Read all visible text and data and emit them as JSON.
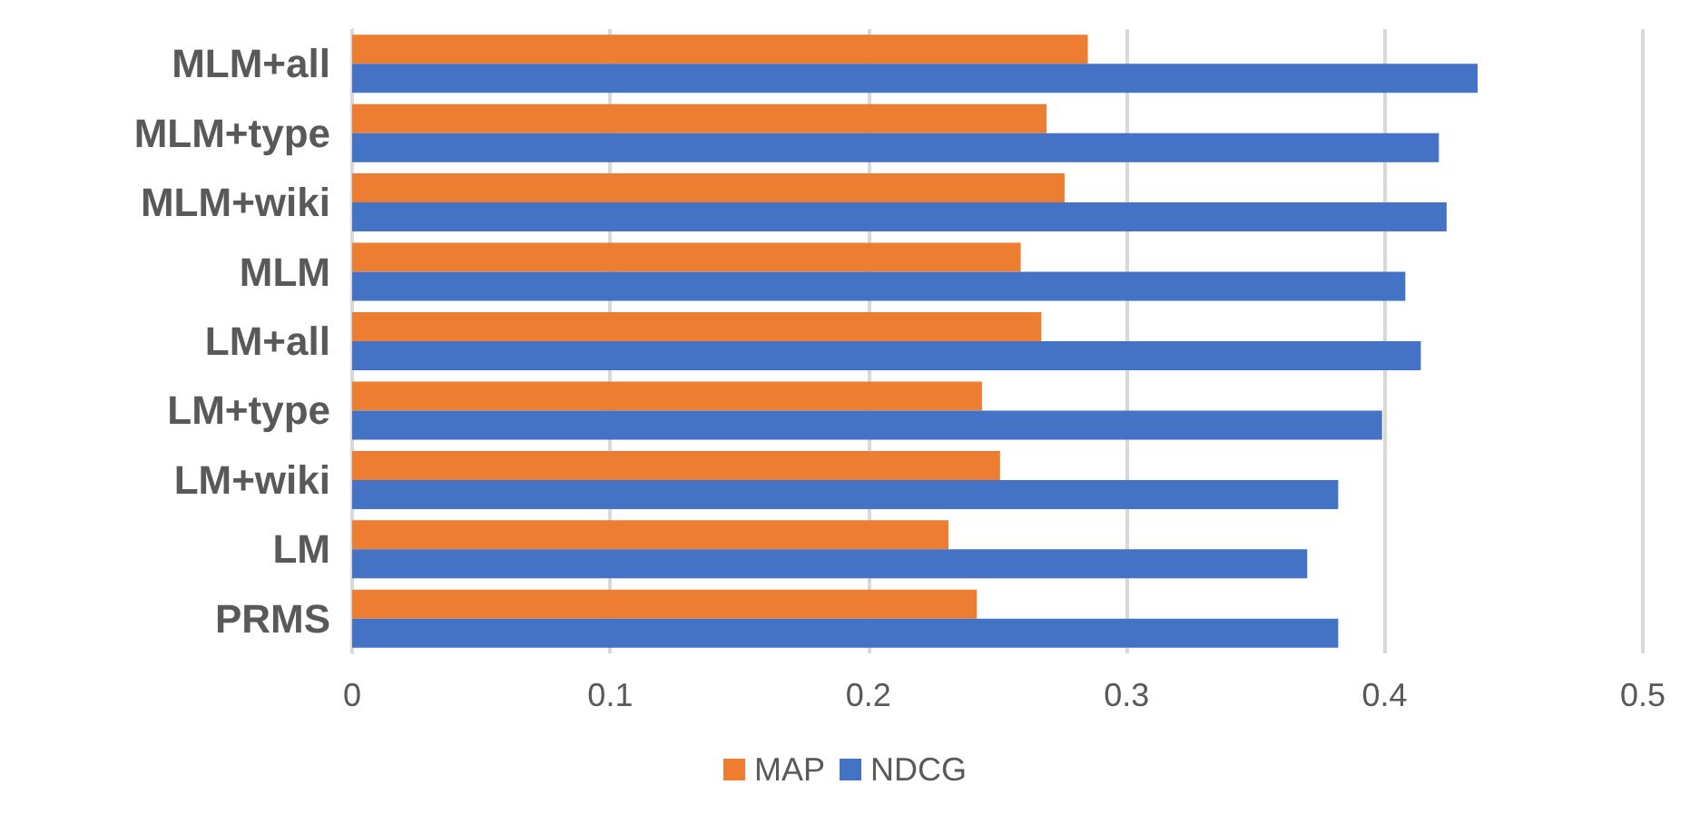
{
  "chart_data": {
    "type": "bar",
    "orientation": "horizontal",
    "categories": [
      "MLM+all",
      "MLM+type",
      "MLM+wiki",
      "MLM",
      "LM+all",
      "LM+type",
      "LM+wiki",
      "LM",
      "PRMS"
    ],
    "series": [
      {
        "name": "MAP",
        "color": "#ed7d31",
        "values": [
          0.285,
          0.269,
          0.276,
          0.259,
          0.267,
          0.244,
          0.251,
          0.231,
          0.242
        ]
      },
      {
        "name": "NDCG",
        "color": "#4472c4",
        "values": [
          0.436,
          0.421,
          0.424,
          0.408,
          0.414,
          0.399,
          0.382,
          0.37,
          0.382
        ]
      }
    ],
    "xlim": [
      0,
      0.5
    ],
    "xticks": [
      0,
      0.1,
      0.2,
      0.3,
      0.4,
      0.5
    ],
    "grid": "x",
    "legend": "bottom"
  }
}
